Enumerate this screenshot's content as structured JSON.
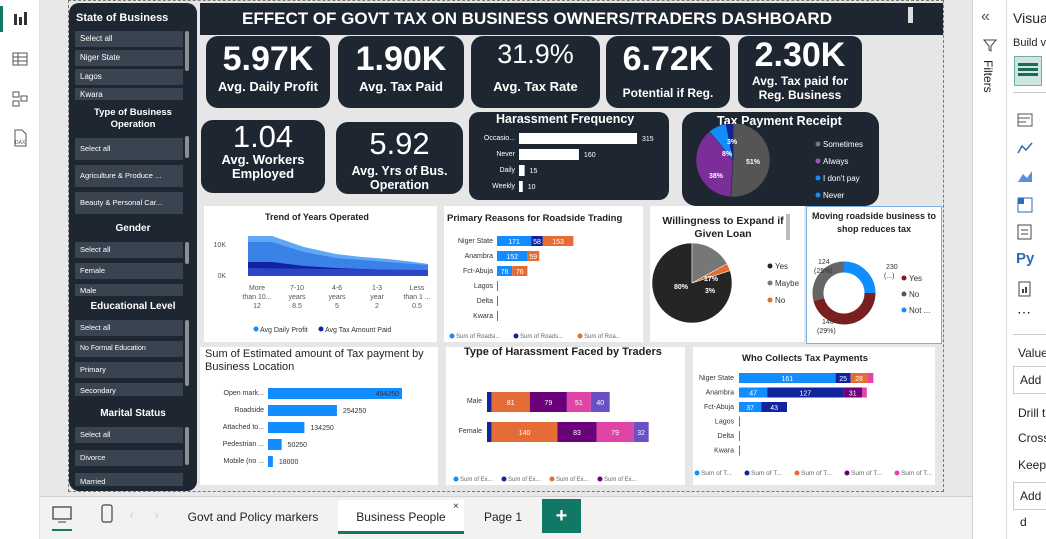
{
  "title": "EFFECT OF GOVT TAX ON BUSINESS OWNERS/TRADERS DASHBOARD",
  "kpis": {
    "profit": {
      "value": "5.97K",
      "label": "Avg. Daily Profit"
    },
    "tax": {
      "value": "1.90K",
      "label": "Avg. Tax Paid"
    },
    "rate": {
      "value": "31.9%",
      "label": "Avg. Tax Rate"
    },
    "reg": {
      "value": "6.72K",
      "label": "Potential if Reg."
    },
    "regbiz": {
      "value": "2.30K",
      "label": "Avg. Tax paid for Reg. Business"
    },
    "workers": {
      "value": "1.04",
      "label": "Avg. Workers Employed"
    },
    "years": {
      "value": "5.92",
      "label": "Avg. Yrs of Bus. Operation"
    }
  },
  "slicer": {
    "state_title": "State of Business",
    "state_items": [
      "Select all",
      "Niger State",
      "Lagos",
      "Kwara"
    ],
    "type_title": "Type of Business Operation",
    "type_items": [
      "Select all",
      "Agriculture & Produce ...",
      "Beauty & Personal Car..."
    ],
    "gender_title": "Gender",
    "gender_items": [
      "Select all",
      "Female",
      "Male"
    ],
    "edu_title": "Educational Level",
    "edu_items": [
      "Select all",
      "No Formal Education",
      "Primary",
      "Secondary"
    ],
    "marital_title": "Marital Status",
    "marital_items": [
      "Select all",
      "Divorce",
      "Married"
    ]
  },
  "charts": {
    "harassment_freq": {
      "title": "Harassment Frequency",
      "categories": [
        "Occasio...",
        "Never",
        "Daily",
        "Weekly"
      ],
      "values": [
        315,
        160,
        15,
        10
      ]
    },
    "tax_receipt": {
      "title": "Tax Payment Receipt",
      "legend": [
        "Sometimes",
        "Always",
        "I don't pay",
        "Never"
      ],
      "labels": [
        "51%",
        "38%",
        "8%",
        "3%"
      ]
    },
    "years_trend": {
      "title": "Trend of Years Operated",
      "categories": [
        [
          "More",
          "than 10...",
          "12"
        ],
        [
          "7-10",
          "years",
          "8.5"
        ],
        [
          "4-6",
          "years",
          "5"
        ],
        [
          "1-3",
          "year",
          "2"
        ],
        [
          "Less",
          "than 1 ...",
          "0.5"
        ]
      ],
      "yticks": [
        "10K",
        "0K"
      ],
      "legend": [
        "Avg Daily Profit",
        "Avg Tax Amount Paid"
      ]
    },
    "roadside": {
      "title": "Primary Reasons for Roadside Trading",
      "categories": [
        "Niger State",
        "Anambra",
        "Fct-Abuja",
        "Lagos",
        "Delta",
        "Kwara"
      ],
      "labels": [
        [
          "171",
          "58",
          "153"
        ],
        [
          "152",
          "59"
        ],
        [
          "76",
          "76"
        ],
        [],
        [],
        []
      ],
      "legend": [
        "Sum of Roadsi...",
        "Sum of Roads...",
        "Sum of Roa..."
      ]
    },
    "expand": {
      "title": "Willingness to Expand if Given Loan",
      "labels": [
        "80%",
        "17%",
        "3%"
      ],
      "legend": [
        "Yes",
        "Maybe",
        "No"
      ]
    },
    "moving": {
      "title": "Moving roadside business to shop reduces tax",
      "labels": [
        "124 (25%)",
        "230 (...)",
        "146 (29%)"
      ],
      "legend": [
        "Yes",
        "No",
        "Not ..."
      ]
    },
    "location": {
      "title": "Sum of Estimated amount of Tax payment by Business Location",
      "categories": [
        "Open mark...",
        "Roadside",
        "Attached to...",
        "Pedestrian ...",
        "Mobile (no ..."
      ],
      "values": [
        494250,
        254250,
        134250,
        50250,
        18000
      ],
      "labels": [
        "494250",
        "254250",
        "134250",
        "50250",
        "18000"
      ]
    },
    "harass_type": {
      "title": "Type of Harassment Faced by Traders",
      "categories": [
        "Male",
        "Female"
      ],
      "labels": [
        [
          "81",
          "79",
          "51",
          "40"
        ],
        [
          "140",
          "83",
          "79",
          "32"
        ]
      ],
      "legend": [
        "Sum of Ex...",
        "Sum of Ex...",
        "Sum of Ex...",
        "Sum of Ex..."
      ]
    },
    "collects": {
      "title": "Who Collects Tax Payments",
      "categories": [
        "Niger State",
        "Anambra",
        "Fct-Abuja",
        "Lagos",
        "Delta",
        "Kwara"
      ],
      "labels": [
        [
          "161",
          "25",
          "28"
        ],
        [
          "47",
          "127",
          "31"
        ],
        [
          "37",
          "43"
        ],
        [],
        [],
        []
      ],
      "legend": [
        "Sum of T...",
        "Sum of T...",
        "Sum of T...",
        "Sum of T...",
        "Sum of T..."
      ]
    }
  },
  "pages": {
    "tab1": "Govt and Policy markers",
    "tab2": "Business People",
    "tab3": "Page 1",
    "add": "+"
  },
  "rightpane": {
    "filters": "Filters",
    "visuals": "Visua",
    "build": "Build v",
    "values": "Value",
    "add1": "Add",
    "drill": "Drill t",
    "cross": "Cross",
    "keep": "Keep",
    "add2": "Add d"
  },
  "colors": {
    "dark": "#1e2631",
    "blue": "#118dff",
    "navy": "#12239e",
    "orange": "#e66c37",
    "purple": "#6b007b",
    "pink": "#e044a7",
    "lightblue": "#5fa8f5"
  }
}
